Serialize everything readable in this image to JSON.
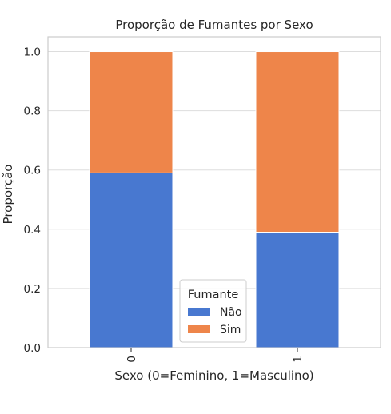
{
  "chart_data": {
    "type": "bar",
    "stacked": true,
    "title": "Proporção de Fumantes por Sexo",
    "xlabel": "Sexo (0=Feminino, 1=Masculino)",
    "ylabel": "Proporção",
    "categories": [
      "0",
      "1"
    ],
    "series": [
      {
        "name": "Não",
        "values": [
          0.59,
          0.39
        ],
        "color": "#4878d0"
      },
      {
        "name": "Sim",
        "values": [
          0.41,
          0.61
        ],
        "color": "#ee854a"
      }
    ],
    "ylim": [
      0,
      1.05
    ],
    "yticks": [
      0.0,
      0.2,
      0.4,
      0.6,
      0.8,
      1.0
    ],
    "ytick_labels": [
      "0.0",
      "0.2",
      "0.4",
      "0.6",
      "0.8",
      "1.0"
    ],
    "grid": true,
    "legend": {
      "title": "Fumante",
      "placement": "bottom-center"
    }
  }
}
